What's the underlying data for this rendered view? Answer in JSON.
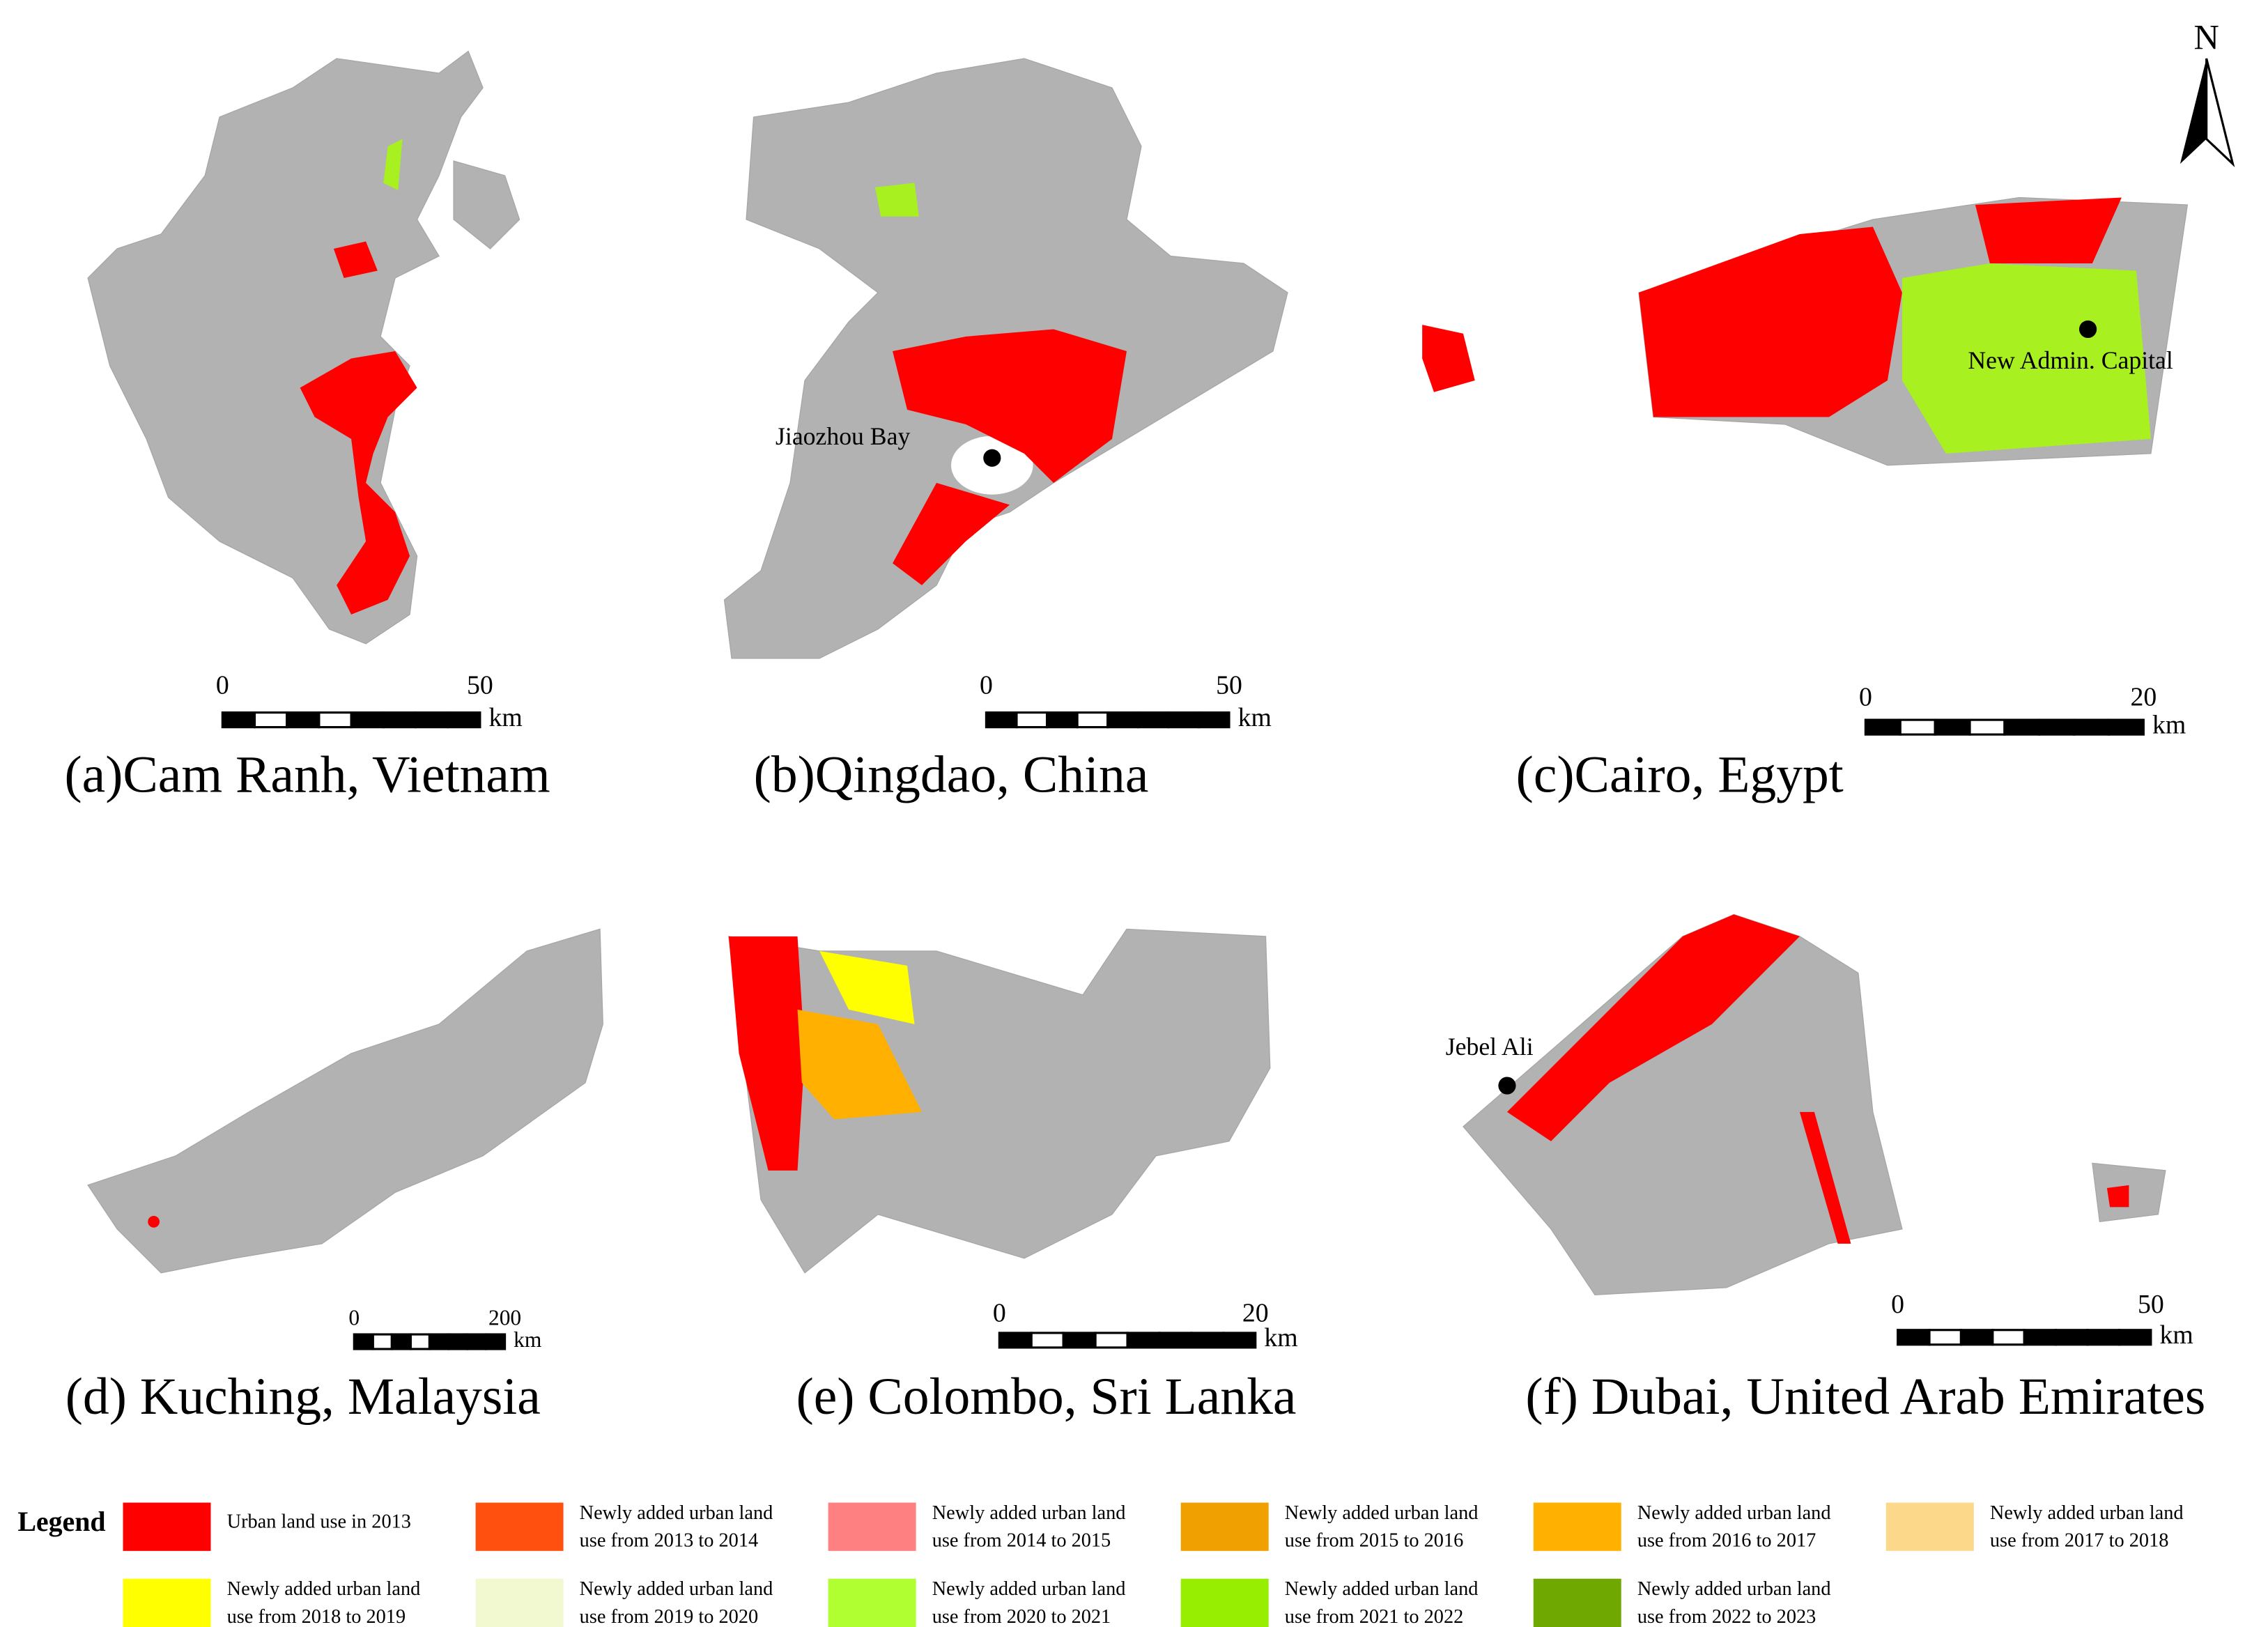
{
  "panels": [
    {
      "caption": "(a)Cam Ranh, Vietnam",
      "scale": {
        "start": 0,
        "end": 50,
        "unit": "km"
      }
    },
    {
      "caption": "(b)Qingdao, China",
      "annotation": "Jiaozhou Bay",
      "scale": {
        "start": 0,
        "end": 50,
        "unit": "km"
      }
    },
    {
      "caption": "(c)Cairo, Egypt",
      "annotation": "New Admin. Capital",
      "scale": {
        "start": 0,
        "end": 20,
        "unit": "km"
      }
    },
    {
      "caption": "(d) Kuching, Malaysia",
      "scale": {
        "start": 0,
        "end": 200,
        "unit": "km"
      }
    },
    {
      "caption": "(e) Colombo, Sri Lanka",
      "scale": {
        "start": 0,
        "end": 20,
        "unit": "km"
      }
    },
    {
      "caption": "(f) Dubai, United Arab Emirates",
      "annotation": "Jebel Ali",
      "scale": {
        "start": 0,
        "end": 50,
        "unit": "km"
      }
    }
  ],
  "north_arrow": "N",
  "legend": {
    "title": "Legend",
    "items": [
      {
        "label": [
          "Urban land use in 2013"
        ],
        "color": "#ff0000"
      },
      {
        "label": [
          "Newly added urban land",
          "use from 2013 to 2014"
        ],
        "color": "#ff5010"
      },
      {
        "label": [
          "Newly added urban land",
          "use from 2014 to 2015"
        ],
        "color": "#ff8080"
      },
      {
        "label": [
          "Newly added urban land",
          "use from 2015 to 2016"
        ],
        "color": "#f0a000"
      },
      {
        "label": [
          "Newly added urban land",
          "use from 2016 to 2017"
        ],
        "color": "#ffb000"
      },
      {
        "label": [
          "Newly added urban land",
          "use from 2017 to 2018"
        ],
        "color": "#fcd98a"
      },
      {
        "label": [
          "Newly added urban land",
          "use from 2018 to 2019"
        ],
        "color": "#ffff00"
      },
      {
        "label": [
          "Newly added urban land",
          "use from 2019 to 2020"
        ],
        "color": "#f2f8d0"
      },
      {
        "label": [
          "Newly added urban land",
          "use from 2020 to 2021"
        ],
        "color": "#b0ff30"
      },
      {
        "label": [
          "Newly added urban land",
          "use from 2021 to 2022"
        ],
        "color": "#98ee00"
      },
      {
        "label": [
          "Newly added urban land",
          "use from 2022 to 2023"
        ],
        "color": "#6ea800"
      }
    ]
  }
}
